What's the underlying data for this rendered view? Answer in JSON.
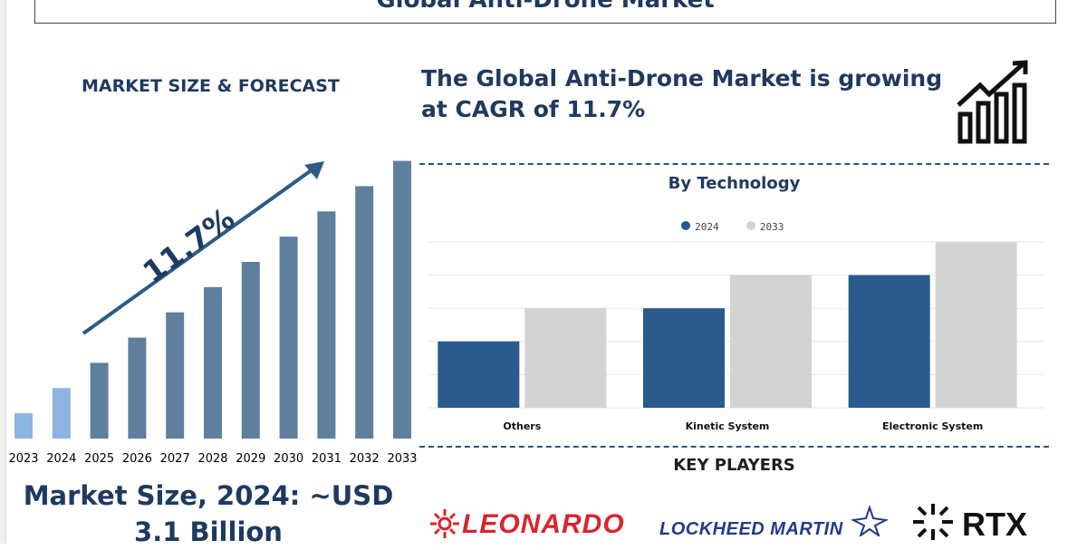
{
  "title": "Global Anti-Drone Market",
  "left_panel": {
    "heading": "MARKET SIZE & FORECAST",
    "cagr_arrow_label": "11.7%",
    "market_size_text": "Market Size, 2024: ~USD 3.1 Billion"
  },
  "cagr_statement": "The Global Anti-Drone Market is growing at CAGR of 11.7%",
  "technology_heading": "By Technology",
  "key_players_heading": "KEY PLAYERS",
  "key_players": {
    "leonardo": "LEONARDO",
    "lockheed": "LOCKHEED MARTIN",
    "rtx": "RTX"
  },
  "colors": {
    "bar_highlight": "#8db4e2",
    "bar_main": "#5f7f9e",
    "series_2024": "#2a5b8c",
    "series_2033": "#d3d3d3",
    "accent": "#1f3a60"
  },
  "chart_data": [
    {
      "type": "bar",
      "title": "MARKET SIZE & FORECAST",
      "categories": [
        "2023",
        "2024",
        "2025",
        "2026",
        "2027",
        "2028",
        "2029",
        "2030",
        "2031",
        "2032",
        "2033"
      ],
      "values": [
        1.0,
        2.0,
        3.0,
        4.0,
        5.0,
        6.0,
        7.0,
        8.0,
        9.0,
        10.0,
        11.0
      ],
      "highlighted": [
        "2023",
        "2024"
      ],
      "annotation": "11.7%",
      "ylim": [
        0,
        11.2
      ]
    },
    {
      "type": "bar",
      "title": "By Technology",
      "categories": [
        "Others",
        "Kinetic System",
        "Electronic System"
      ],
      "series": [
        {
          "name": "2024",
          "values": [
            2,
            3,
            4
          ]
        },
        {
          "name": "2033",
          "values": [
            3,
            4,
            5
          ]
        }
      ],
      "ylim": [
        0,
        5
      ]
    }
  ]
}
